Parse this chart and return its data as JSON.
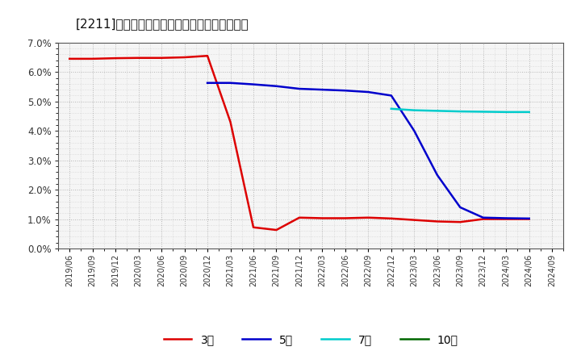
{
  "title": "[2211]　当期純利益マージンの標準偏差の推移",
  "background_color": "#ffffff",
  "plot_bg_color": "#f5f5f5",
  "grid_color": "#999999",
  "series": {
    "3年": {
      "color": "#dd0000",
      "linewidth": 1.8,
      "data": [
        [
          "2019/06",
          0.0645
        ],
        [
          "2019/09",
          0.0645
        ],
        [
          "2019/12",
          0.0647
        ],
        [
          "2020/03",
          0.0648
        ],
        [
          "2020/06",
          0.0648
        ],
        [
          "2020/09",
          0.065
        ],
        [
          "2020/12",
          0.0655
        ],
        [
          "2021/03",
          0.043
        ],
        [
          "2021/06",
          0.0072
        ],
        [
          "2021/09",
          0.0063
        ],
        [
          "2021/12",
          0.0105
        ],
        [
          "2022/03",
          0.0103
        ],
        [
          "2022/06",
          0.0103
        ],
        [
          "2022/09",
          0.0105
        ],
        [
          "2022/12",
          0.0102
        ],
        [
          "2023/03",
          0.0097
        ],
        [
          "2023/06",
          0.0092
        ],
        [
          "2023/09",
          0.009
        ],
        [
          "2023/12",
          0.01
        ],
        [
          "2024/03",
          0.01
        ],
        [
          "2024/06",
          0.01
        ]
      ]
    },
    "5年": {
      "color": "#0000cc",
      "linewidth": 1.8,
      "data": [
        [
          "2020/12",
          0.0563
        ],
        [
          "2021/03",
          0.0563
        ],
        [
          "2021/06",
          0.0558
        ],
        [
          "2021/09",
          0.0552
        ],
        [
          "2021/12",
          0.0543
        ],
        [
          "2022/03",
          0.054
        ],
        [
          "2022/06",
          0.0537
        ],
        [
          "2022/09",
          0.0532
        ],
        [
          "2022/12",
          0.052
        ],
        [
          "2023/03",
          0.04
        ],
        [
          "2023/06",
          0.025
        ],
        [
          "2023/09",
          0.014
        ],
        [
          "2023/12",
          0.0105
        ],
        [
          "2024/03",
          0.0103
        ],
        [
          "2024/06",
          0.0102
        ]
      ]
    },
    "7年": {
      "color": "#00cccc",
      "linewidth": 1.8,
      "data": [
        [
          "2022/12",
          0.0475
        ],
        [
          "2023/03",
          0.047
        ],
        [
          "2023/06",
          0.0468
        ],
        [
          "2023/09",
          0.0466
        ],
        [
          "2023/12",
          0.0465
        ],
        [
          "2024/03",
          0.0464
        ],
        [
          "2024/06",
          0.0464
        ]
      ]
    },
    "10年": {
      "color": "#006600",
      "linewidth": 1.8,
      "data": []
    }
  },
  "legend_order": [
    "3年",
    "5年",
    "7年",
    "10年"
  ],
  "ylim": [
    0.0,
    0.07
  ],
  "yticks": [
    0.0,
    0.01,
    0.02,
    0.03,
    0.04,
    0.05,
    0.06,
    0.07
  ],
  "x_labels": [
    "2019/06",
    "2019/09",
    "2019/12",
    "2020/03",
    "2020/06",
    "2020/09",
    "2020/12",
    "2021/03",
    "2021/06",
    "2021/09",
    "2021/12",
    "2022/03",
    "2022/06",
    "2022/09",
    "2022/12",
    "2023/03",
    "2023/06",
    "2023/09",
    "2023/12",
    "2024/03",
    "2024/06",
    "2024/09"
  ]
}
